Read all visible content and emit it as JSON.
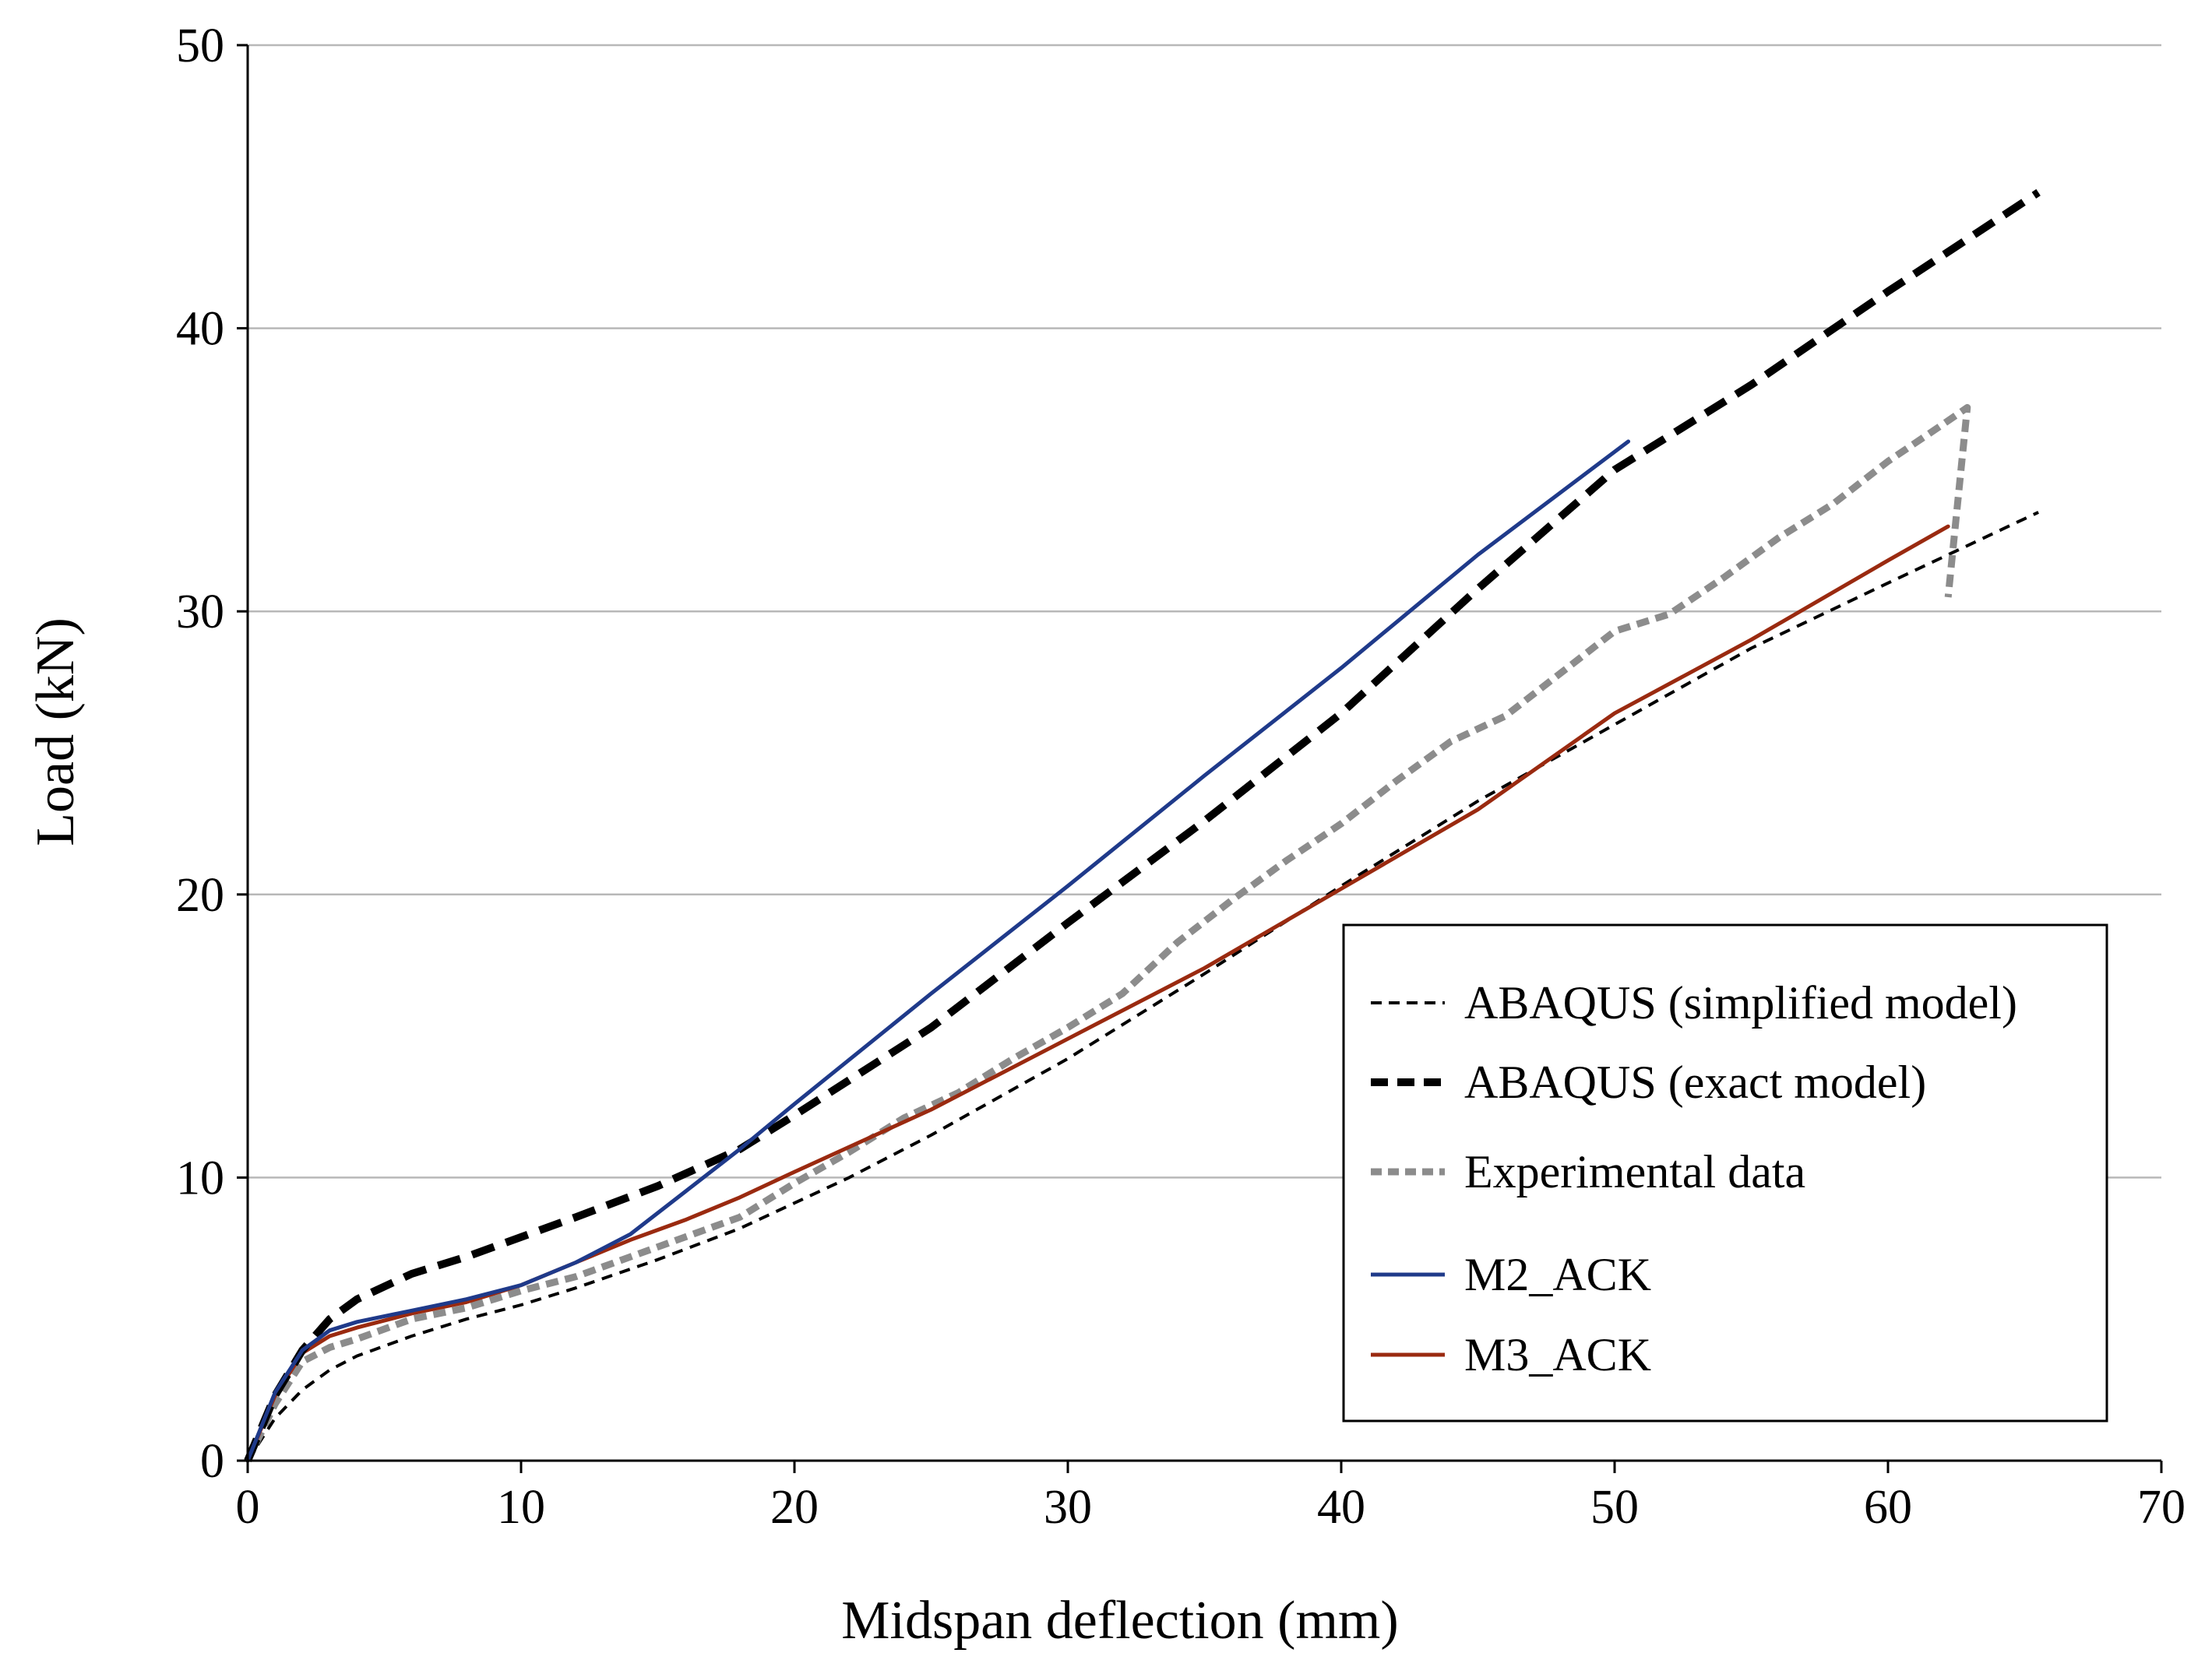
{
  "chart_data": {
    "type": "line",
    "title": "",
    "xlabel": "Midspan deflection (mm)",
    "ylabel": "Load (kN)",
    "xlim": [
      0,
      70
    ],
    "ylim": [
      0,
      50
    ],
    "xticks": [
      "0",
      "10",
      "20",
      "30",
      "40",
      "50",
      "60",
      "70"
    ],
    "yticks": [
      "0",
      "10",
      "20",
      "30",
      "40",
      "50"
    ],
    "grid": "horizontal",
    "legend_position": "bottom-right",
    "series": [
      {
        "name": "ABAQUS (simplified model)",
        "color": "#000000",
        "style": "thin-dash",
        "x": [
          0,
          1,
          2,
          3,
          4,
          6,
          8,
          10,
          12,
          15,
          18,
          20,
          22,
          25,
          30,
          35,
          40,
          45,
          50,
          55,
          60,
          65.5
        ],
        "y": [
          0,
          1.5,
          2.5,
          3.2,
          3.7,
          4.4,
          5.0,
          5.5,
          6.1,
          7.1,
          8.2,
          9.1,
          10.0,
          11.5,
          14.2,
          17.2,
          20.3,
          23.3,
          26.0,
          28.7,
          31.0,
          33.5
        ]
      },
      {
        "name": "ABAQUS (exact model)",
        "color": "#000000",
        "style": "thick-dash",
        "x": [
          0,
          1,
          2,
          3,
          4,
          6,
          8,
          10,
          12,
          15,
          18,
          20,
          25,
          30,
          35,
          40,
          45,
          50,
          55,
          60,
          65.5
        ],
        "y": [
          0,
          2.3,
          3.9,
          5.0,
          5.7,
          6.6,
          7.2,
          7.9,
          8.6,
          9.7,
          11.0,
          12.2,
          15.3,
          19.0,
          22.6,
          26.4,
          30.8,
          35.0,
          38.0,
          41.3,
          44.8
        ]
      },
      {
        "name": "Experimental data",
        "color": "#8c8c8c",
        "style": "thick-dot",
        "x": [
          0,
          1,
          2,
          3,
          4,
          6,
          8,
          10,
          12,
          14,
          16,
          18,
          20,
          22,
          24,
          26,
          28,
          30,
          32,
          34,
          36,
          38,
          40,
          42,
          44,
          46,
          48,
          50,
          52,
          54,
          56,
          58,
          60,
          62,
          62.9,
          62.2
        ],
        "y": [
          0,
          2.0,
          3.5,
          4.0,
          4.3,
          5.0,
          5.4,
          6.0,
          6.5,
          7.2,
          7.9,
          8.6,
          9.8,
          10.9,
          12.1,
          13.0,
          14.2,
          15.3,
          16.5,
          18.3,
          19.8,
          21.2,
          22.5,
          24.0,
          25.4,
          26.3,
          27.8,
          29.3,
          29.9,
          31.2,
          32.6,
          33.8,
          35.3,
          36.6,
          37.2,
          30.5
        ]
      },
      {
        "name": "M2_ACK",
        "color": "#1f3a8a",
        "style": "solid",
        "x": [
          0,
          1,
          2,
          3,
          4,
          6,
          8,
          10,
          12,
          14,
          16,
          18,
          20,
          25,
          30,
          35,
          40,
          45,
          50.5
        ],
        "y": [
          0,
          2.4,
          3.9,
          4.6,
          4.9,
          5.3,
          5.7,
          6.2,
          7.0,
          8.0,
          9.5,
          11.0,
          12.6,
          16.5,
          20.3,
          24.2,
          28.0,
          32.0,
          36.0
        ]
      },
      {
        "name": "M3_ACK",
        "color": "#9a2a10",
        "style": "solid",
        "x": [
          0,
          1,
          2,
          3,
          4,
          6,
          8,
          10,
          12,
          14,
          16,
          18,
          20,
          25,
          30,
          35,
          40,
          45,
          50,
          55,
          60,
          62.2
        ],
        "y": [
          0,
          2.3,
          3.8,
          4.4,
          4.7,
          5.2,
          5.6,
          6.2,
          7.0,
          7.8,
          8.5,
          9.3,
          10.2,
          12.4,
          14.9,
          17.4,
          20.2,
          23.0,
          26.4,
          29.0,
          31.8,
          33.0
        ]
      }
    ]
  }
}
